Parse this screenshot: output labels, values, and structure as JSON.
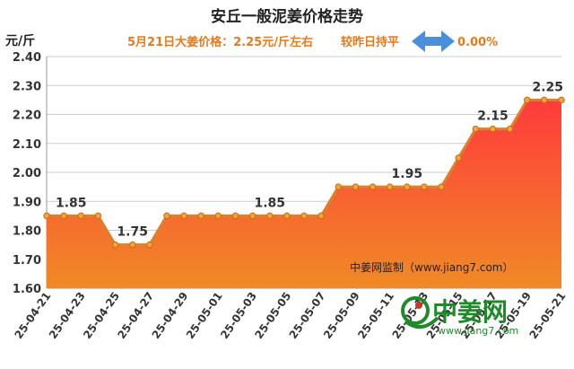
{
  "chart_data": {
    "type": "area",
    "title": "安丘一般泥姜价格走势",
    "subtitle": "5月21日大姜价格：2.25元/斤左右",
    "change_label": "较昨日持平",
    "change_value": "0.00%",
    "ylabel": "元/斤",
    "ylim": [
      1.6,
      2.4
    ],
    "yticks": [
      "1.60",
      "1.70",
      "1.80",
      "1.90",
      "2.00",
      "2.10",
      "2.20",
      "2.30",
      "2.40"
    ],
    "grid": true,
    "x": [
      "25-04-21",
      "25-04-22",
      "25-04-23",
      "25-04-24",
      "25-04-25",
      "25-04-26",
      "25-04-27",
      "25-04-28",
      "25-04-29",
      "25-04-30",
      "25-05-01",
      "25-05-02",
      "25-05-03",
      "25-05-04",
      "25-05-05",
      "25-05-06",
      "25-05-07",
      "25-05-08",
      "25-05-09",
      "25-05-10",
      "25-05-11",
      "25-05-12",
      "25-05-13",
      "25-05-14",
      "25-05-15",
      "25-05-16",
      "25-05-17",
      "25-05-18",
      "25-05-19",
      "25-05-20",
      "25-05-21"
    ],
    "xtick_labels": [
      "25-04-21",
      "25-04-23",
      "25-04-25",
      "25-04-27",
      "25-04-29",
      "25-05-01",
      "25-05-03",
      "25-05-05",
      "25-05-07",
      "25-05-09",
      "25-05-11",
      "25-05-13",
      "25-05-15",
      "25-05-17",
      "25-05-19",
      "25-05-21"
    ],
    "values": [
      1.85,
      1.85,
      1.85,
      1.85,
      1.75,
      1.75,
      1.75,
      1.85,
      1.85,
      1.85,
      1.85,
      1.85,
      1.85,
      1.85,
      1.85,
      1.85,
      1.85,
      1.95,
      1.95,
      1.95,
      1.95,
      1.95,
      1.95,
      1.95,
      2.05,
      2.15,
      2.15,
      2.15,
      2.25,
      2.25,
      2.25
    ],
    "data_labels": [
      {
        "index": 0,
        "text": "1.85"
      },
      {
        "index": 5,
        "text": "1.75"
      },
      {
        "index": 13,
        "text": "1.85"
      },
      {
        "index": 21,
        "text": "1.95"
      },
      {
        "index": 26,
        "text": "2.15"
      },
      {
        "index": 30,
        "text": "2.25"
      }
    ],
    "colors": {
      "line": "#d9812f",
      "marker": "#f2a43c",
      "fill_top": "#ff3b3b",
      "fill_bottom": "#f08a26",
      "grid": "#cccccc",
      "arrow": "#4a8fd8"
    }
  },
  "watermark": "中姜网监制（www.jiang7.com）",
  "logo": {
    "text": "中姜网",
    "url": "www.jiang7.com"
  }
}
